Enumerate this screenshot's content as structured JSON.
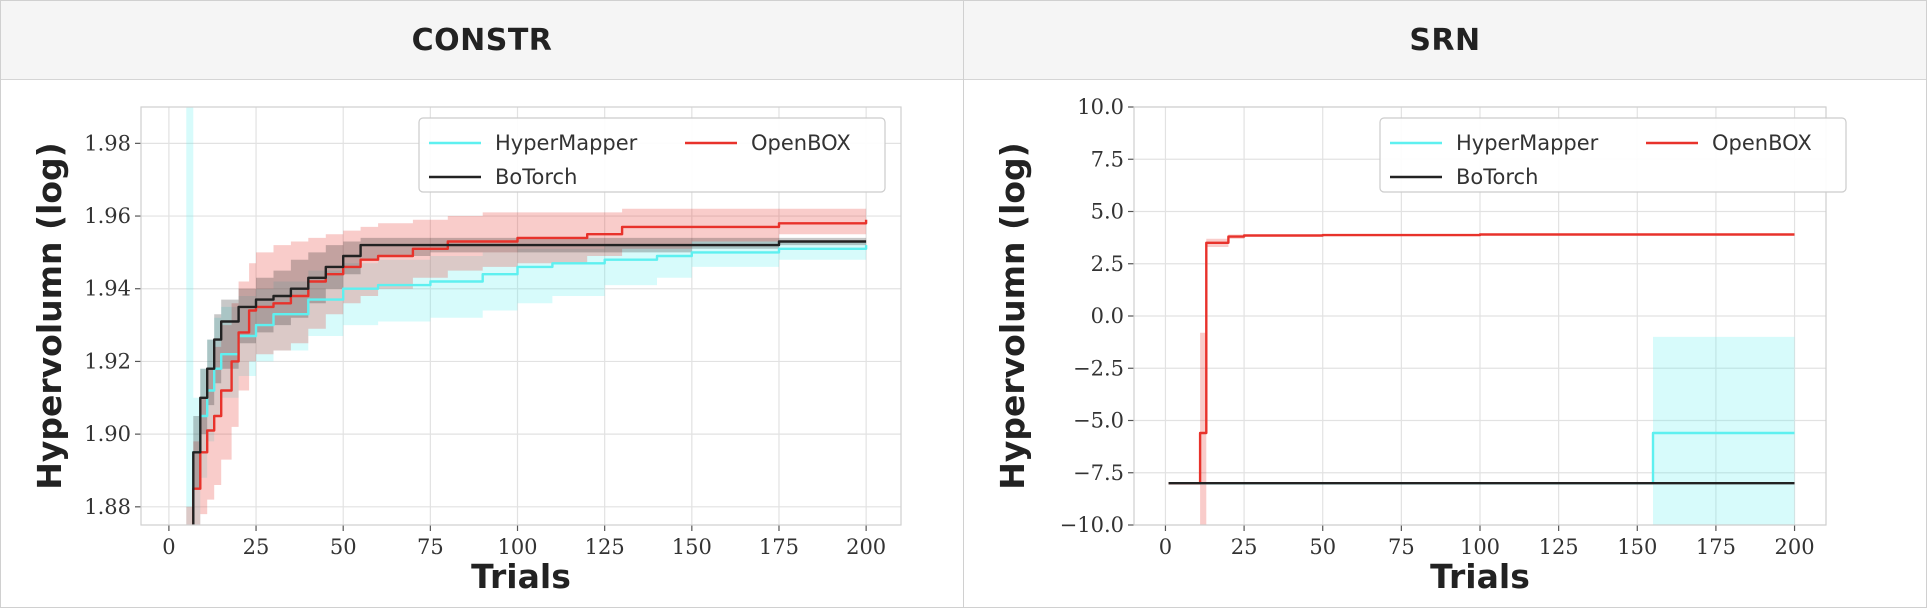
{
  "panels": {
    "left": {
      "title": "CONSTR"
    },
    "right": {
      "title": "SRN"
    }
  },
  "chart_data": [
    {
      "type": "line",
      "title": "CONSTR",
      "xlabel": "Trials",
      "ylabel": "Hypervolumn (log)",
      "xlim": [
        -8,
        210
      ],
      "ylim": [
        1.875,
        1.99
      ],
      "xticks": [
        0,
        25,
        50,
        75,
        100,
        125,
        150,
        175,
        200
      ],
      "yticks": [
        1.88,
        1.9,
        1.92,
        1.94,
        1.96,
        1.98
      ],
      "ytick_labels": [
        "1.88",
        "1.90",
        "1.92",
        "1.94",
        "1.96",
        "1.98"
      ],
      "grid": true,
      "legend": {
        "placement": "top-right",
        "columns": 2,
        "entries": [
          "HyperMapper",
          "OpenBOX",
          "BoTorch"
        ]
      },
      "series": [
        {
          "name": "HyperMapper",
          "color": "#5ef0f0",
          "x": [
            5,
            7,
            9,
            11,
            13,
            15,
            20,
            25,
            30,
            40,
            50,
            60,
            75,
            90,
            100,
            110,
            125,
            140,
            150,
            175,
            200
          ],
          "y": [
            1.872,
            1.895,
            1.905,
            1.912,
            1.918,
            1.922,
            1.927,
            1.93,
            1.933,
            1.937,
            1.94,
            1.941,
            1.942,
            1.944,
            1.946,
            1.947,
            1.948,
            1.949,
            1.95,
            1.951,
            1.952
          ],
          "band_upper": [
            1.99,
            1.91,
            1.918,
            1.926,
            1.932,
            1.935,
            1.938,
            1.94,
            1.942,
            1.945,
            1.947,
            1.948,
            1.949,
            1.95,
            1.951,
            1.951,
            1.952,
            1.952,
            1.953,
            1.953,
            1.953
          ],
          "band_lower": [
            1.86,
            1.875,
            1.888,
            1.898,
            1.905,
            1.91,
            1.916,
            1.92,
            1.923,
            1.927,
            1.93,
            1.931,
            1.932,
            1.934,
            1.936,
            1.938,
            1.941,
            1.943,
            1.946,
            1.948,
            1.95
          ]
        },
        {
          "name": "OpenBOX",
          "color": "#e8322b",
          "x": [
            5,
            7,
            9,
            11,
            13,
            15,
            18,
            20,
            23,
            25,
            30,
            35,
            40,
            45,
            50,
            55,
            60,
            70,
            80,
            90,
            100,
            120,
            130,
            150,
            175,
            200
          ],
          "y": [
            1.872,
            1.885,
            1.895,
            1.901,
            1.905,
            1.912,
            1.92,
            1.928,
            1.934,
            1.935,
            1.936,
            1.938,
            1.942,
            1.944,
            1.946,
            1.948,
            1.949,
            1.951,
            1.953,
            1.953,
            1.954,
            1.955,
            1.957,
            1.957,
            1.958,
            1.959
          ],
          "band_upper": [
            1.88,
            1.898,
            1.91,
            1.918,
            1.924,
            1.93,
            1.936,
            1.942,
            1.947,
            1.95,
            1.952,
            1.953,
            1.954,
            1.955,
            1.956,
            1.957,
            1.958,
            1.959,
            1.96,
            1.961,
            1.961,
            1.961,
            1.962,
            1.962,
            1.962,
            1.961
          ],
          "band_lower": [
            1.86,
            1.87,
            1.878,
            1.882,
            1.886,
            1.893,
            1.902,
            1.912,
            1.92,
            1.922,
            1.923,
            1.925,
            1.929,
            1.933,
            1.936,
            1.938,
            1.94,
            1.943,
            1.945,
            1.946,
            1.947,
            1.949,
            1.951,
            1.953,
            1.955,
            1.957
          ]
        },
        {
          "name": "BoTorch",
          "color": "#222222",
          "x": [
            5,
            7,
            9,
            11,
            13,
            15,
            20,
            25,
            30,
            35,
            40,
            45,
            50,
            55,
            60,
            75,
            100,
            125,
            150,
            175,
            200
          ],
          "y": [
            1.872,
            1.895,
            1.91,
            1.918,
            1.926,
            1.931,
            1.935,
            1.937,
            1.938,
            1.94,
            1.943,
            1.946,
            1.949,
            1.952,
            1.952,
            1.952,
            1.952,
            1.952,
            1.952,
            1.953,
            1.953
          ],
          "band_upper": [
            1.875,
            1.905,
            1.918,
            1.926,
            1.933,
            1.937,
            1.94,
            1.943,
            1.945,
            1.948,
            1.95,
            1.952,
            1.953,
            1.954,
            1.954,
            1.954,
            1.954,
            1.954,
            1.954,
            1.954,
            1.954
          ],
          "band_lower": [
            1.86,
            1.885,
            1.9,
            1.908,
            1.914,
            1.918,
            1.925,
            1.928,
            1.93,
            1.932,
            1.936,
            1.94,
            1.944,
            1.948,
            1.949,
            1.95,
            1.95,
            1.95,
            1.951,
            1.952,
            1.952
          ]
        }
      ]
    },
    {
      "type": "line",
      "title": "SRN",
      "xlabel": "Trials",
      "ylabel": "Hypervolumn (log)",
      "xlim": [
        -10,
        210
      ],
      "ylim": [
        -10.0,
        10.0
      ],
      "xticks": [
        0,
        25,
        50,
        75,
        100,
        125,
        150,
        175,
        200
      ],
      "yticks": [
        -10.0,
        -7.5,
        -5.0,
        -2.5,
        0.0,
        2.5,
        5.0,
        7.5,
        10.0
      ],
      "ytick_labels": [
        "−10.0",
        "−7.5",
        "−5.0",
        "−2.5",
        "0.0",
        "2.5",
        "5.0",
        "7.5",
        "10.0"
      ],
      "grid": true,
      "legend": {
        "placement": "top-right",
        "columns": 2,
        "entries": [
          "HyperMapper",
          "OpenBOX",
          "BoTorch"
        ]
      },
      "series": [
        {
          "name": "HyperMapper",
          "color": "#5ef0f0",
          "x": [
            1,
            154,
            155,
            156,
            200
          ],
          "y": [
            -8.0,
            -8.0,
            -5.6,
            -5.6,
            -5.6
          ],
          "band_upper": [
            -8.0,
            -8.0,
            -1.0,
            -1.0,
            -1.0
          ],
          "band_lower": [
            -8.0,
            -8.0,
            -10.0,
            -10.0,
            -10.0
          ]
        },
        {
          "name": "OpenBOX",
          "color": "#e8322b",
          "x": [
            1,
            10,
            11,
            12,
            13,
            15,
            20,
            25,
            50,
            100,
            150,
            200
          ],
          "y": [
            -8.0,
            -8.0,
            -5.6,
            -5.6,
            3.5,
            3.5,
            3.8,
            3.85,
            3.87,
            3.9,
            3.9,
            3.9
          ],
          "band_upper": [
            -8.0,
            -8.0,
            -0.8,
            -0.8,
            3.7,
            3.7,
            3.9,
            3.9,
            3.9,
            3.9,
            3.9,
            3.9
          ],
          "band_lower": [
            -8.0,
            -8.0,
            -10.0,
            -10.0,
            3.3,
            3.3,
            3.7,
            3.8,
            3.85,
            3.9,
            3.9,
            3.9
          ]
        },
        {
          "name": "BoTorch",
          "color": "#222222",
          "x": [
            1,
            200
          ],
          "y": [
            -8.0,
            -8.0
          ],
          "band_upper": [
            -8.0,
            -8.0
          ],
          "band_lower": [
            -8.0,
            -8.0
          ]
        }
      ]
    }
  ],
  "legend_display": {
    "hypermapper": "HyperMapper",
    "openbox": "OpenBOX",
    "botorch": "BoTorch"
  }
}
